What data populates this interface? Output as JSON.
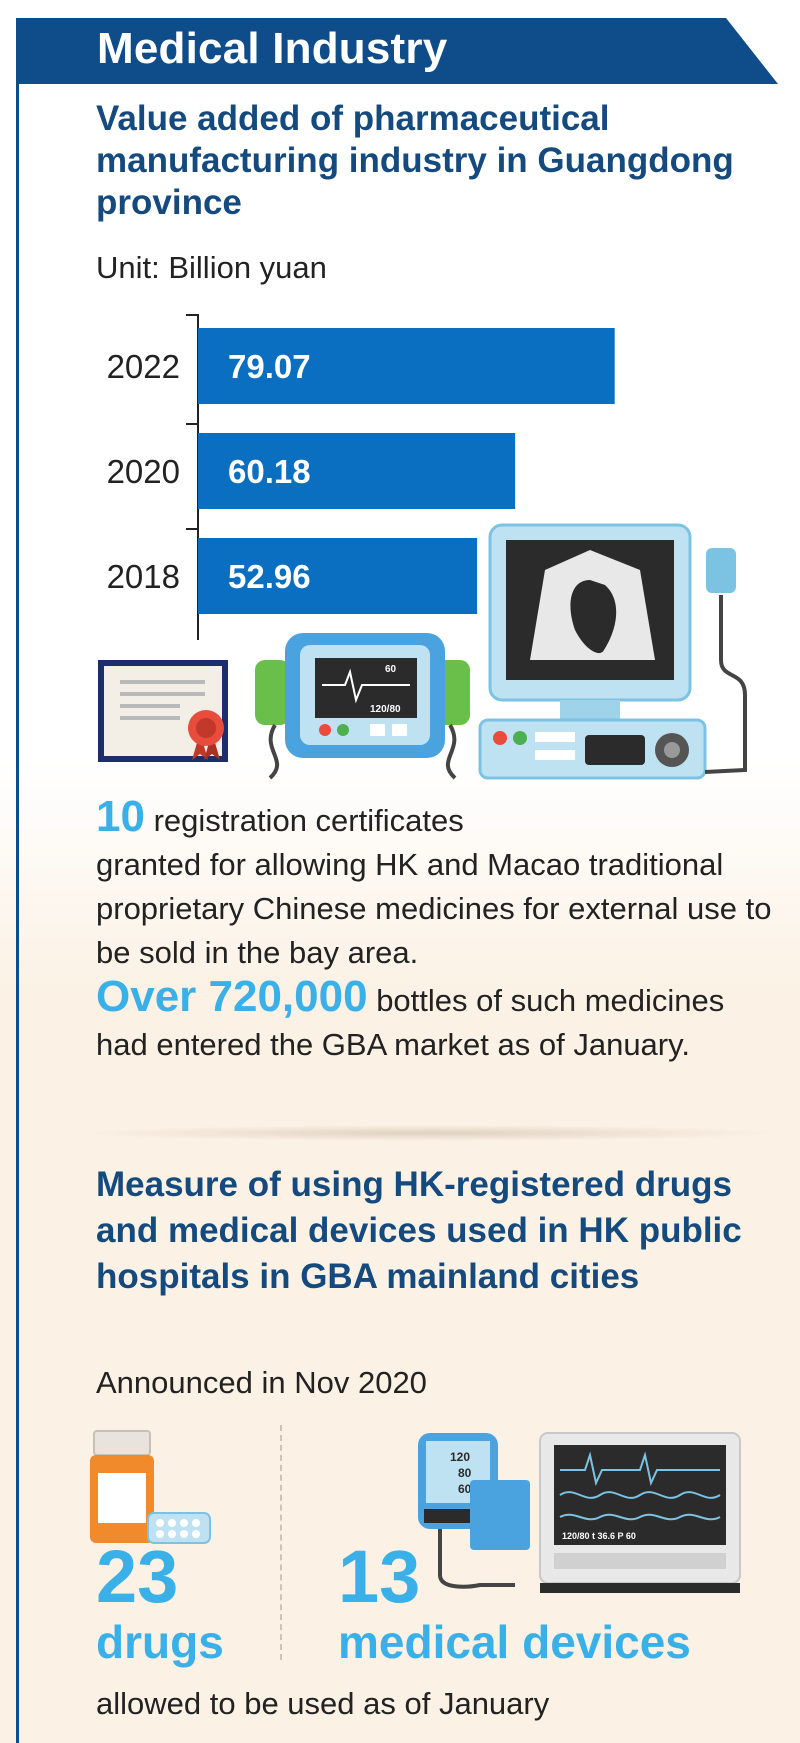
{
  "header": {
    "title": "Medical Industry"
  },
  "chart_data": {
    "type": "bar",
    "title": "Value added of pharmaceutical manufacturing industry in Guangdong province",
    "unit": "Unit: Billion yuan",
    "categories": [
      "2022",
      "2020",
      "2018"
    ],
    "values": [
      79.07,
      60.18,
      52.96
    ],
    "value_labels": [
      "79.07",
      "60.18",
      "52.96"
    ],
    "orientation": "horizontal",
    "bar_color": "#0a6fc0"
  },
  "certificates": {
    "number": "10",
    "line1": "registration certificates",
    "rest": "granted for allowing HK and Macao traditional proprietary Chinese medicines for external use to be sold in the bay area."
  },
  "bottles": {
    "number": "Over 720,000",
    "rest": "bottles of such medicines had entered the GBA market as of January."
  },
  "measure": {
    "title": "Measure of using HK-registered drugs and medical devices used in HK public hospitals in GBA mainland cities",
    "announced": "Announced in Nov 2020"
  },
  "drugs": {
    "number": "23",
    "label": "drugs"
  },
  "devices": {
    "number": "13",
    "label": "medical devices"
  },
  "monitor_small": {
    "l1": "120",
    "l2": "80",
    "l3": "60"
  },
  "monitor_big": {
    "readout": "120/80   t 36.6   P 60"
  },
  "defib_screen": {
    "v1": "60",
    "v2": "120/80"
  },
  "footer": "allowed to be used as of January",
  "colors": {
    "navy": "#0e4d8a",
    "title_blue": "#154a7e",
    "accent": "#3ab0e8",
    "bar": "#0a6fc0"
  }
}
